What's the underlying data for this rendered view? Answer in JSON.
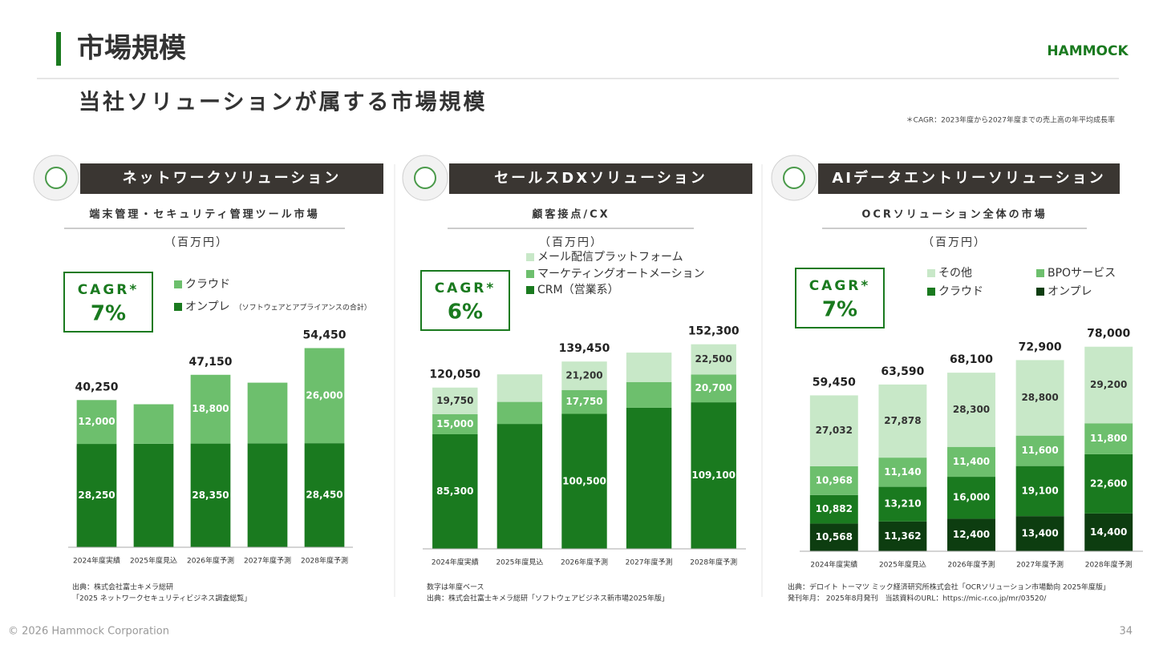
{
  "title": "市場規模",
  "subtitle": "当社ソリューションが属する市場規模",
  "logo": "HAMMOCK",
  "note": "＊CAGR：2023年度から2027年度までの売上高の年平均成長率",
  "footer": "© 2026 Hammock Corporation",
  "page_number": "34",
  "chart_data": [
    {
      "type": "stacked_bar",
      "header": "ネットワークソリューション",
      "title": "端末管理・セキュリティ管理ツール市場",
      "unit": "（百万円）",
      "cagr_label": "CAGR*",
      "cagr_value": "7%",
      "categories": [
        "2024年度実績",
        "2025年度見込",
        "2026年度予測",
        "2027年度予測",
        "2028年度予測"
      ],
      "series": [
        {
          "name": "オンプレ",
          "note": "（ソフトウェアとアプライアンスの合計）",
          "color": "#1a7a1f",
          "values": [
            28250,
            28300,
            28350,
            28400,
            28450
          ],
          "value_labels": [
            "28,250",
            null,
            "28,350",
            null,
            "28,450"
          ]
        },
        {
          "name": "クラウド",
          "color": "#6dbf6d",
          "values": [
            12000,
            10800,
            18800,
            16600,
            26000
          ],
          "value_labels": [
            "12,000",
            null,
            "18,800",
            null,
            "26,000"
          ]
        }
      ],
      "totals": [
        40250,
        null,
        47150,
        null,
        54450
      ],
      "total_labels": [
        "40,250",
        null,
        "47,150",
        null,
        "54,450"
      ],
      "ylim": [
        0,
        62000
      ],
      "source": [
        "出典：株式会社富士キメラ総研",
        "「2025 ネットワークセキュリティビジネス調査総覧」"
      ]
    },
    {
      "type": "stacked_bar",
      "header": "セールスDXソリューション",
      "title": "顧客接点/CX",
      "unit": "（百万円）",
      "cagr_label": "CAGR*",
      "cagr_value": "6%",
      "categories": [
        "2024年度実績",
        "2025年度見込",
        "2026年度予測",
        "2027年度予測",
        "2028年度予測"
      ],
      "series": [
        {
          "name": "CRM（営業系）",
          "color": "#1a7a1f",
          "values": [
            85300,
            93000,
            100500,
            105000,
            109100
          ],
          "value_labels": [
            "85,300",
            null,
            "100,500",
            null,
            "109,100"
          ]
        },
        {
          "name": "マーケティングオートメーション",
          "color": "#6dbf6d",
          "values": [
            15000,
            16400,
            17750,
            19200,
            20700
          ],
          "value_labels": [
            "15,000",
            null,
            "17,750",
            null,
            "20,700"
          ]
        },
        {
          "name": "メール配信プラットフォーム",
          "color": "#c8e8c8",
          "values": [
            19750,
            20500,
            21200,
            21900,
            22500
          ],
          "value_labels": [
            "19,750",
            null,
            "21,200",
            null,
            "22,500"
          ]
        }
      ],
      "totals": [
        120050,
        null,
        139450,
        null,
        152300
      ],
      "total_labels": [
        "120,050",
        null,
        "139,450",
        null,
        "152,300"
      ],
      "ylim": [
        0,
        170000
      ],
      "source": [
        "数字は年度ベース",
        "出典：株式会社富士キメラ総研「ソフトウェアビジネス新市場2025年版」"
      ]
    },
    {
      "type": "stacked_bar",
      "header": "AIデータエントリーソリューション",
      "title": "OCRソリューション全体の市場",
      "unit": "（百万円）",
      "cagr_label": "CAGR*",
      "cagr_value": "7%",
      "categories": [
        "2024年度実績",
        "2025年度見込",
        "2026年度予測",
        "2027年度予測",
        "2028年度予測"
      ],
      "series": [
        {
          "name": "オンプレ",
          "color": "#0d3d10",
          "values": [
            10568,
            11362,
            12400,
            13400,
            14400
          ],
          "value_labels": [
            "10,568",
            "11,362",
            "12,400",
            "13,400",
            "14,400"
          ]
        },
        {
          "name": "クラウド",
          "color": "#1a7a1f",
          "values": [
            10882,
            13210,
            16000,
            19100,
            22600
          ],
          "value_labels": [
            "10,882",
            "13,210",
            "16,000",
            "19,100",
            "22,600"
          ]
        },
        {
          "name": "BPOサービス",
          "color": "#6dbf6d",
          "values": [
            10968,
            11140,
            11400,
            11600,
            11800
          ],
          "value_labels": [
            "10,968",
            "11,140",
            "11,400",
            "11,600",
            "11,800"
          ]
        },
        {
          "name": "その他",
          "color": "#c8e8c8",
          "values": [
            27032,
            27878,
            28300,
            28800,
            29200
          ],
          "value_labels": [
            "27,032",
            "27,878",
            "28,300",
            "28,800",
            "29,200"
          ]
        }
      ],
      "totals": [
        59450,
        63590,
        68100,
        72900,
        78000
      ],
      "total_labels": [
        "59,450",
        "63,590",
        "68,100",
        "72,900",
        "78,000"
      ],
      "ylim": [
        0,
        88000
      ],
      "source": [
        "出典：デロイト トーマツ ミック経済研究所株式会社「OCRソリューション市場動向 2025年度版」",
        "発刊年月： 2025年8月発刊　当該資料のURL：https://mic-r.co.jp/mr/03520/"
      ]
    }
  ]
}
